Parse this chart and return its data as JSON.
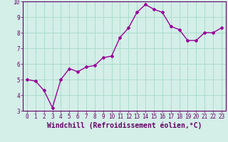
{
  "x": [
    0,
    1,
    2,
    3,
    4,
    5,
    6,
    7,
    8,
    9,
    10,
    11,
    12,
    13,
    14,
    15,
    16,
    17,
    18,
    19,
    20,
    21,
    22,
    23
  ],
  "y": [
    5.0,
    4.9,
    4.3,
    3.2,
    5.0,
    5.7,
    5.5,
    5.8,
    5.9,
    6.4,
    6.5,
    7.7,
    8.3,
    9.3,
    9.8,
    9.5,
    9.3,
    8.4,
    8.2,
    7.5,
    7.5,
    8.0,
    8.0,
    8.3
  ],
  "line_color": "#990099",
  "marker": "D",
  "marker_size": 2,
  "xlabel": "Windchill (Refroidissement éolien,°C)",
  "xlabel_fontsize": 7,
  "xlim": [
    -0.5,
    23.5
  ],
  "ylim": [
    3,
    10
  ],
  "yticks": [
    3,
    4,
    5,
    6,
    7,
    8,
    9,
    10
  ],
  "xticks": [
    0,
    1,
    2,
    3,
    4,
    5,
    6,
    7,
    8,
    9,
    10,
    11,
    12,
    13,
    14,
    15,
    16,
    17,
    18,
    19,
    20,
    21,
    22,
    23
  ],
  "grid_color": "#aaddcc",
  "background_color": "#d4eee8",
  "tick_label_color": "#660066",
  "tick_label_fontsize": 5.5,
  "spine_color": "#660066",
  "linewidth": 1.0
}
